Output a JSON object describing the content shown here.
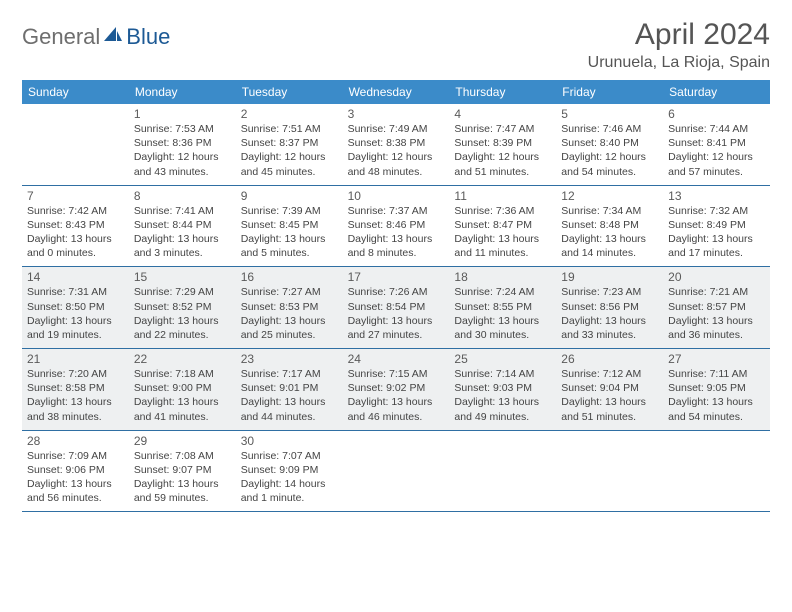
{
  "logo": {
    "word1": "General",
    "word2": "Blue"
  },
  "title": "April 2024",
  "location": "Urunuela, La Rioja, Spain",
  "colors": {
    "header_bg": "#3b8bc9",
    "header_text": "#ffffff",
    "rule": "#2f6fa3",
    "shaded_bg": "#eef0f1",
    "text": "#444444",
    "logo_gray": "#6e6e6e",
    "logo_blue": "#1d5a95"
  },
  "weekdays": [
    "Sunday",
    "Monday",
    "Tuesday",
    "Wednesday",
    "Thursday",
    "Friday",
    "Saturday"
  ],
  "weeks": [
    [
      {
        "blank": true
      },
      {
        "d": "1",
        "sr": "Sunrise: 7:53 AM",
        "ss": "Sunset: 8:36 PM",
        "dl1": "Daylight: 12 hours",
        "dl2": "and 43 minutes."
      },
      {
        "d": "2",
        "sr": "Sunrise: 7:51 AM",
        "ss": "Sunset: 8:37 PM",
        "dl1": "Daylight: 12 hours",
        "dl2": "and 45 minutes."
      },
      {
        "d": "3",
        "sr": "Sunrise: 7:49 AM",
        "ss": "Sunset: 8:38 PM",
        "dl1": "Daylight: 12 hours",
        "dl2": "and 48 minutes."
      },
      {
        "d": "4",
        "sr": "Sunrise: 7:47 AM",
        "ss": "Sunset: 8:39 PM",
        "dl1": "Daylight: 12 hours",
        "dl2": "and 51 minutes."
      },
      {
        "d": "5",
        "sr": "Sunrise: 7:46 AM",
        "ss": "Sunset: 8:40 PM",
        "dl1": "Daylight: 12 hours",
        "dl2": "and 54 minutes."
      },
      {
        "d": "6",
        "sr": "Sunrise: 7:44 AM",
        "ss": "Sunset: 8:41 PM",
        "dl1": "Daylight: 12 hours",
        "dl2": "and 57 minutes."
      }
    ],
    [
      {
        "d": "7",
        "sr": "Sunrise: 7:42 AM",
        "ss": "Sunset: 8:43 PM",
        "dl1": "Daylight: 13 hours",
        "dl2": "and 0 minutes."
      },
      {
        "d": "8",
        "sr": "Sunrise: 7:41 AM",
        "ss": "Sunset: 8:44 PM",
        "dl1": "Daylight: 13 hours",
        "dl2": "and 3 minutes."
      },
      {
        "d": "9",
        "sr": "Sunrise: 7:39 AM",
        "ss": "Sunset: 8:45 PM",
        "dl1": "Daylight: 13 hours",
        "dl2": "and 5 minutes."
      },
      {
        "d": "10",
        "sr": "Sunrise: 7:37 AM",
        "ss": "Sunset: 8:46 PM",
        "dl1": "Daylight: 13 hours",
        "dl2": "and 8 minutes."
      },
      {
        "d": "11",
        "sr": "Sunrise: 7:36 AM",
        "ss": "Sunset: 8:47 PM",
        "dl1": "Daylight: 13 hours",
        "dl2": "and 11 minutes."
      },
      {
        "d": "12",
        "sr": "Sunrise: 7:34 AM",
        "ss": "Sunset: 8:48 PM",
        "dl1": "Daylight: 13 hours",
        "dl2": "and 14 minutes."
      },
      {
        "d": "13",
        "sr": "Sunrise: 7:32 AM",
        "ss": "Sunset: 8:49 PM",
        "dl1": "Daylight: 13 hours",
        "dl2": "and 17 minutes."
      }
    ],
    [
      {
        "d": "14",
        "sr": "Sunrise: 7:31 AM",
        "ss": "Sunset: 8:50 PM",
        "dl1": "Daylight: 13 hours",
        "dl2": "and 19 minutes."
      },
      {
        "d": "15",
        "sr": "Sunrise: 7:29 AM",
        "ss": "Sunset: 8:52 PM",
        "dl1": "Daylight: 13 hours",
        "dl2": "and 22 minutes."
      },
      {
        "d": "16",
        "sr": "Sunrise: 7:27 AM",
        "ss": "Sunset: 8:53 PM",
        "dl1": "Daylight: 13 hours",
        "dl2": "and 25 minutes."
      },
      {
        "d": "17",
        "sr": "Sunrise: 7:26 AM",
        "ss": "Sunset: 8:54 PM",
        "dl1": "Daylight: 13 hours",
        "dl2": "and 27 minutes."
      },
      {
        "d": "18",
        "sr": "Sunrise: 7:24 AM",
        "ss": "Sunset: 8:55 PM",
        "dl1": "Daylight: 13 hours",
        "dl2": "and 30 minutes."
      },
      {
        "d": "19",
        "sr": "Sunrise: 7:23 AM",
        "ss": "Sunset: 8:56 PM",
        "dl1": "Daylight: 13 hours",
        "dl2": "and 33 minutes."
      },
      {
        "d": "20",
        "sr": "Sunrise: 7:21 AM",
        "ss": "Sunset: 8:57 PM",
        "dl1": "Daylight: 13 hours",
        "dl2": "and 36 minutes."
      }
    ],
    [
      {
        "d": "21",
        "sr": "Sunrise: 7:20 AM",
        "ss": "Sunset: 8:58 PM",
        "dl1": "Daylight: 13 hours",
        "dl2": "and 38 minutes."
      },
      {
        "d": "22",
        "sr": "Sunrise: 7:18 AM",
        "ss": "Sunset: 9:00 PM",
        "dl1": "Daylight: 13 hours",
        "dl2": "and 41 minutes."
      },
      {
        "d": "23",
        "sr": "Sunrise: 7:17 AM",
        "ss": "Sunset: 9:01 PM",
        "dl1": "Daylight: 13 hours",
        "dl2": "and 44 minutes."
      },
      {
        "d": "24",
        "sr": "Sunrise: 7:15 AM",
        "ss": "Sunset: 9:02 PM",
        "dl1": "Daylight: 13 hours",
        "dl2": "and 46 minutes."
      },
      {
        "d": "25",
        "sr": "Sunrise: 7:14 AM",
        "ss": "Sunset: 9:03 PM",
        "dl1": "Daylight: 13 hours",
        "dl2": "and 49 minutes."
      },
      {
        "d": "26",
        "sr": "Sunrise: 7:12 AM",
        "ss": "Sunset: 9:04 PM",
        "dl1": "Daylight: 13 hours",
        "dl2": "and 51 minutes."
      },
      {
        "d": "27",
        "sr": "Sunrise: 7:11 AM",
        "ss": "Sunset: 9:05 PM",
        "dl1": "Daylight: 13 hours",
        "dl2": "and 54 minutes."
      }
    ],
    [
      {
        "d": "28",
        "sr": "Sunrise: 7:09 AM",
        "ss": "Sunset: 9:06 PM",
        "dl1": "Daylight: 13 hours",
        "dl2": "and 56 minutes."
      },
      {
        "d": "29",
        "sr": "Sunrise: 7:08 AM",
        "ss": "Sunset: 9:07 PM",
        "dl1": "Daylight: 13 hours",
        "dl2": "and 59 minutes."
      },
      {
        "d": "30",
        "sr": "Sunrise: 7:07 AM",
        "ss": "Sunset: 9:09 PM",
        "dl1": "Daylight: 14 hours",
        "dl2": "and 1 minute."
      },
      {
        "blank": true
      },
      {
        "blank": true
      },
      {
        "blank": true
      },
      {
        "blank": true
      }
    ]
  ],
  "shaded_rows": [
    2,
    3
  ]
}
